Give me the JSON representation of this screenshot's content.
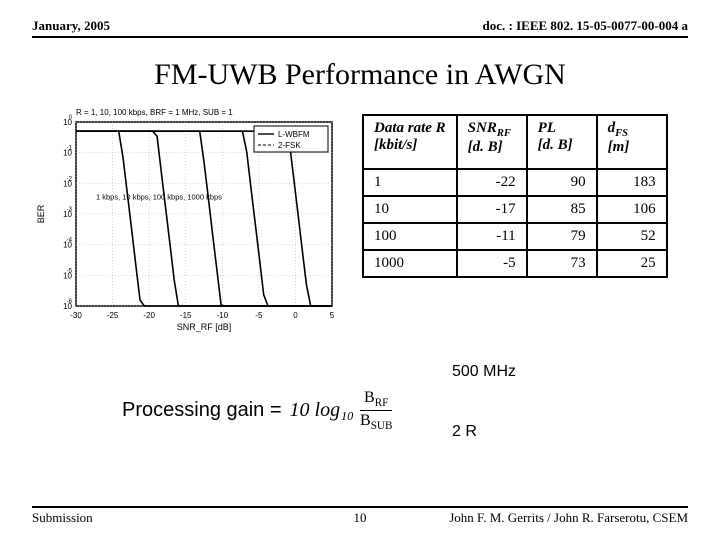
{
  "header": {
    "date": "January, 2005",
    "docref": "doc. : IEEE 802. 15-05-0077-00-004 a"
  },
  "title": "FM-UWB Performance in AWGN",
  "chart": {
    "caption": "R = 1, 10, 100 kbps, BRF = 1 MHz, SUB = 1",
    "legend": [
      "L-WBFM",
      "2-FSK"
    ],
    "xlabel": "SNR_RF [dB]",
    "ylabel": "BER",
    "inline_label": "1 kbps, 10 kbps, 100 kbps, 1000 kbps",
    "xlim": [
      -30,
      5
    ],
    "ylim_exp": [
      -6,
      0
    ],
    "xticks": [
      -30,
      -25,
      -20,
      -15,
      -10,
      -5,
      0,
      5
    ],
    "ytick_exponents": [
      0,
      -1,
      -2,
      -3,
      -4,
      -5,
      -6
    ],
    "background_color": "#ffffff",
    "grid_color": "#b0b0b0",
    "curve_color": "#000000",
    "curve_width": 1.6,
    "axis_fontsize": 8,
    "curves": [
      {
        "x0": -22,
        "slope": 2.0
      },
      {
        "x0": -17,
        "slope": 2.0
      },
      {
        "x0": -11,
        "slope": 2.0
      },
      {
        "x0": -5,
        "slope": 2.0
      },
      {
        "x0": 1,
        "slope": 2.0
      }
    ]
  },
  "table": {
    "columns": [
      {
        "h1": "Data rate R",
        "h2": "[kbit/s]"
      },
      {
        "h1": "SNR",
        "sub": "RF",
        "h2": "[d. B]"
      },
      {
        "h1": "PL",
        "h2": "[d. B]"
      },
      {
        "h1": "d",
        "sub": "FS",
        "h2": "[m]"
      }
    ],
    "rows": [
      [
        "1",
        "-22",
        "90",
        "183"
      ],
      [
        "10",
        "-17",
        "85",
        "106"
      ],
      [
        "100",
        "-11",
        "79",
        "52"
      ],
      [
        "1000",
        "-5",
        "73",
        "25"
      ]
    ]
  },
  "formula": {
    "mhz": "500 MHz",
    "label": "Processing gain  =",
    "tenlog": "10 log₁₀",
    "frac_top": "B",
    "frac_top_sub": "RF",
    "frac_bot": "B",
    "frac_bot_sub": "SUB",
    "two_r": "2 R"
  },
  "footer": {
    "left": "Submission",
    "page": "10",
    "right": "John F. M. Gerrits / John R. Farserotu, CSEM"
  }
}
